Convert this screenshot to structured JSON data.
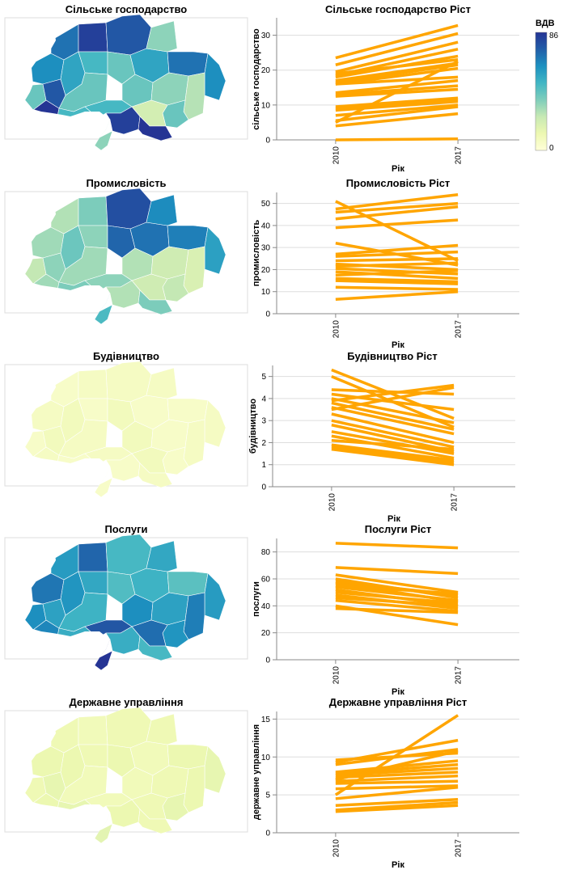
{
  "legend": {
    "title": "ВДВ",
    "min_label": "0",
    "max_label": "86",
    "min": 0,
    "max": 86,
    "colors": [
      "#ffffd9",
      "#edf8b1",
      "#c7e9b4",
      "#7fcdbb",
      "#41b6c4",
      "#1d91c0",
      "#225ea8",
      "#253494"
    ]
  },
  "series_color": "#ffa500",
  "chart_data": [
    {
      "type": "map",
      "title": "Сільське господарство",
      "value_range": [
        0,
        25
      ],
      "region_values": [
        18,
        12,
        22,
        26,
        20,
        24,
        16,
        14,
        12,
        14,
        22,
        12,
        16,
        10,
        20,
        18,
        12,
        10,
        8,
        12,
        6,
        14,
        24,
        30,
        10
      ]
    },
    {
      "type": "line",
      "title": "Сільське господарство Ріст",
      "xlabel": "Рік",
      "ylabel": "сільське господарство",
      "x": [
        "2010",
        "2017"
      ],
      "ylim": [
        0,
        35
      ],
      "y_ticks": [
        0,
        10,
        20,
        30
      ],
      "series": [
        {
          "values": [
            23.5,
            32.8
          ]
        },
        {
          "values": [
            21.5,
            30.5
          ]
        },
        {
          "values": [
            19.5,
            28.0
          ]
        },
        {
          "values": [
            18.5,
            26.0
          ]
        },
        {
          "values": [
            18.0,
            24.0
          ]
        },
        {
          "values": [
            19.0,
            23.0
          ]
        },
        {
          "values": [
            17.0,
            22.0
          ]
        },
        {
          "values": [
            16.5,
            21.5
          ]
        },
        {
          "values": [
            16.0,
            20.5
          ]
        },
        {
          "values": [
            16.0,
            18.0
          ]
        },
        {
          "values": [
            13.5,
            17.0
          ]
        },
        {
          "values": [
            13.0,
            15.5
          ]
        },
        {
          "values": [
            12.5,
            14.5
          ]
        },
        {
          "values": [
            9.5,
            12.0
          ]
        },
        {
          "values": [
            9.0,
            11.5
          ]
        },
        {
          "values": [
            8.5,
            11.0
          ]
        },
        {
          "values": [
            7.0,
            10.0
          ]
        },
        {
          "values": [
            5.0,
            22.5
          ]
        },
        {
          "values": [
            5.5,
            9.5
          ]
        },
        {
          "values": [
            4.0,
            7.5
          ]
        },
        {
          "values": [
            0.0,
            0.3
          ]
        }
      ]
    },
    {
      "type": "map",
      "title": "Промисловість",
      "value_range": [
        0,
        55
      ],
      "region_values": [
        20,
        16,
        22,
        20,
        18,
        24,
        26,
        22,
        20,
        24,
        50,
        46,
        44,
        40,
        42,
        36,
        18,
        14,
        12,
        16,
        14,
        22,
        18,
        24,
        30
      ]
    },
    {
      "type": "line",
      "title": "Промисловість Ріст",
      "xlabel": "Рік",
      "ylabel": "промисловість",
      "x": [
        "2010",
        "2017"
      ],
      "ylim": [
        0,
        55
      ],
      "y_ticks": [
        0,
        10,
        20,
        30,
        40,
        50
      ],
      "series": [
        {
          "values": [
            51.0,
            24.0
          ]
        },
        {
          "values": [
            47.5,
            54.0
          ]
        },
        {
          "values": [
            46.0,
            50.0
          ]
        },
        {
          "values": [
            43.0,
            48.5
          ]
        },
        {
          "values": [
            39.0,
            42.5
          ]
        },
        {
          "values": [
            32.0,
            22.0
          ]
        },
        {
          "values": [
            27.0,
            31.0
          ]
        },
        {
          "values": [
            26.0,
            28.0
          ]
        },
        {
          "values": [
            24.0,
            25.0
          ]
        },
        {
          "values": [
            22.5,
            20.0
          ]
        },
        {
          "values": [
            21.5,
            23.0
          ]
        },
        {
          "values": [
            20.5,
            18.0
          ]
        },
        {
          "values": [
            19.0,
            16.0
          ]
        },
        {
          "values": [
            17.5,
            19.5
          ]
        },
        {
          "values": [
            16.0,
            14.5
          ]
        },
        {
          "values": [
            15.0,
            13.5
          ]
        },
        {
          "values": [
            12.0,
            11.0
          ]
        },
        {
          "values": [
            6.5,
            10.0
          ]
        }
      ]
    },
    {
      "type": "map",
      "title": "Будівництво",
      "value_range": [
        0,
        50
      ],
      "region_values": [
        4,
        3,
        5,
        4,
        3,
        4,
        5,
        3,
        4,
        3,
        4,
        5,
        3,
        4,
        3,
        4,
        5,
        3,
        4,
        3,
        5,
        4,
        3,
        4,
        3
      ]
    },
    {
      "type": "line",
      "title": "Будівництво Ріст",
      "xlabel": "Рік",
      "ylabel": "будівництво",
      "x": [
        "2010",
        "2017"
      ],
      "ylim": [
        0,
        5.5
      ],
      "y_ticks": [
        0,
        1,
        2,
        3,
        4,
        5
      ],
      "series": [
        {
          "values": [
            5.3,
            3.1
          ]
        },
        {
          "values": [
            5.0,
            2.7
          ]
        },
        {
          "values": [
            4.4,
            4.2
          ]
        },
        {
          "values": [
            4.2,
            3.5
          ]
        },
        {
          "values": [
            4.0,
            2.9
          ]
        },
        {
          "values": [
            3.9,
            4.6
          ]
        },
        {
          "values": [
            3.8,
            2.6
          ]
        },
        {
          "values": [
            3.6,
            2.4
          ]
        },
        {
          "values": [
            3.5,
            4.5
          ]
        },
        {
          "values": [
            3.3,
            2.0
          ]
        },
        {
          "values": [
            3.0,
            1.8
          ]
        },
        {
          "values": [
            2.8,
            1.6
          ]
        },
        {
          "values": [
            2.5,
            1.5
          ]
        },
        {
          "values": [
            2.3,
            1.3
          ]
        },
        {
          "values": [
            2.1,
            1.7
          ]
        },
        {
          "values": [
            1.9,
            1.2
          ]
        },
        {
          "values": [
            1.8,
            1.1
          ]
        },
        {
          "values": [
            1.7,
            1.0
          ]
        }
      ]
    },
    {
      "type": "map",
      "title": "Послуги",
      "value_range": [
        0,
        86
      ],
      "region_values": [
        68,
        62,
        56,
        64,
        58,
        72,
        60,
        54,
        50,
        52,
        48,
        46,
        50,
        54,
        44,
        58,
        62,
        56,
        66,
        60,
        70,
        76,
        52,
        48,
        86
      ]
    },
    {
      "type": "line",
      "title": "Послуги Ріст",
      "xlabel": "Рік",
      "ylabel": "послуги",
      "x": [
        "2010",
        "2017"
      ],
      "ylim": [
        0,
        90
      ],
      "y_ticks": [
        0,
        20,
        40,
        60,
        80
      ],
      "series": [
        {
          "values": [
            86.5,
            83.0
          ]
        },
        {
          "values": [
            68.5,
            64.0
          ]
        },
        {
          "values": [
            63.0,
            50.0
          ]
        },
        {
          "values": [
            60.0,
            46.0
          ]
        },
        {
          "values": [
            58.0,
            48.0
          ]
        },
        {
          "values": [
            57.0,
            43.0
          ]
        },
        {
          "values": [
            55.0,
            49.0
          ]
        },
        {
          "values": [
            54.0,
            44.0
          ]
        },
        {
          "values": [
            52.0,
            40.0
          ]
        },
        {
          "values": [
            50.0,
            42.0
          ]
        },
        {
          "values": [
            48.0,
            38.0
          ]
        },
        {
          "values": [
            46.0,
            40.0
          ]
        },
        {
          "values": [
            44.0,
            36.0
          ]
        },
        {
          "values": [
            38.0,
            35.0
          ]
        },
        {
          "values": [
            40.0,
            26.0
          ]
        }
      ]
    },
    {
      "type": "map",
      "title": "Державне управління",
      "value_range": [
        0,
        55
      ],
      "region_values": [
        8,
        7,
        9,
        8,
        7,
        6,
        8,
        7,
        6,
        9,
        7,
        8,
        6,
        7,
        8,
        9,
        6,
        7,
        8,
        9,
        7,
        6,
        8,
        7,
        10
      ]
    },
    {
      "type": "line",
      "title": "Державне управління Ріст",
      "xlabel": "Рік",
      "ylabel": "державне управління",
      "x": [
        "2010",
        "2017"
      ],
      "ylim": [
        0,
        16
      ],
      "y_ticks": [
        0,
        5,
        10,
        15
      ],
      "series": [
        {
          "values": [
            9.6,
            10.5
          ]
        },
        {
          "values": [
            9.3,
            12.2
          ]
        },
        {
          "values": [
            9.0,
            11.0
          ]
        },
        {
          "values": [
            8.0,
            9.5
          ]
        },
        {
          "values": [
            7.8,
            9.0
          ]
        },
        {
          "values": [
            7.6,
            8.5
          ]
        },
        {
          "values": [
            7.3,
            8.0
          ]
        },
        {
          "values": [
            7.0,
            10.8
          ]
        },
        {
          "values": [
            6.8,
            7.5
          ]
        },
        {
          "values": [
            6.5,
            6.8
          ]
        },
        {
          "values": [
            5.8,
            6.2
          ]
        },
        {
          "values": [
            5.0,
            15.5
          ]
        },
        {
          "values": [
            4.5,
            6.0
          ]
        },
        {
          "values": [
            3.6,
            4.4
          ]
        },
        {
          "values": [
            3.0,
            4.0
          ]
        },
        {
          "values": [
            2.8,
            3.6
          ]
        }
      ]
    }
  ]
}
